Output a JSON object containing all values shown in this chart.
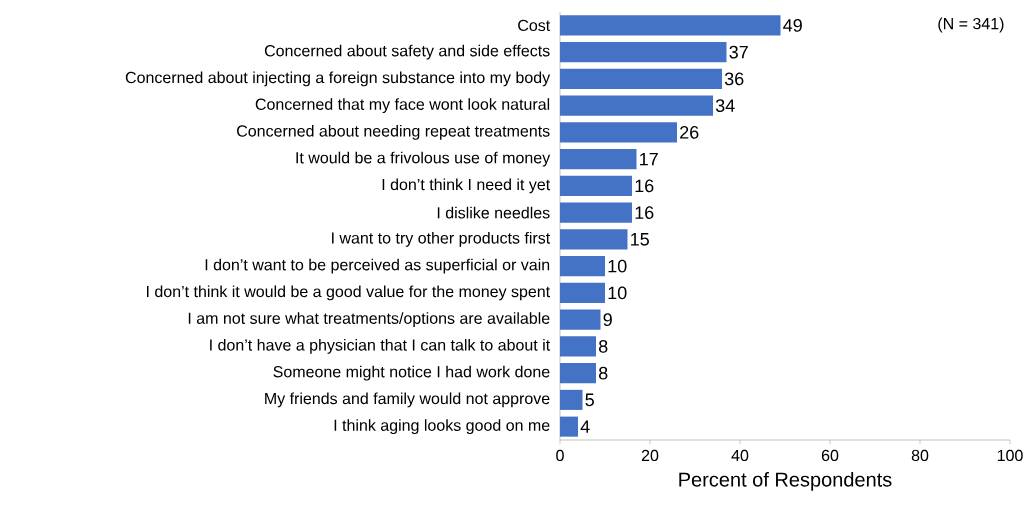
{
  "chart_data": {
    "type": "bar",
    "orientation": "horizontal",
    "xlabel": "Percent of Respondents",
    "categories": [
      "Cost",
      "Concerned about safety and side effects",
      "Concerned about injecting a foreign substance into my body",
      "Concerned that my face wont look natural",
      "Concerned about needing repeat treatments",
      "It would be a frivolous use of money",
      "I don’t think I need it yet",
      "I dislike needles",
      "I want to try other products first",
      "I don’t want to be perceived as superficial or vain",
      "I don’t think it would be a good value for the money spent",
      "I am not sure what treatments/options are available",
      "I don’t have a physician that I can talk to about it",
      "Someone might notice I had work done",
      "My friends and family would not approve",
      "I think aging looks good on me"
    ],
    "values": [
      49,
      37,
      36,
      34,
      26,
      17,
      16,
      16,
      15,
      10,
      10,
      9,
      8,
      8,
      5,
      4
    ],
    "color": "#4472c4",
    "xlim": [
      0,
      100
    ],
    "xticks": [
      0,
      20,
      40,
      60,
      80,
      100
    ],
    "data_labels": true,
    "annotations": [
      "(N = 341)"
    ]
  }
}
